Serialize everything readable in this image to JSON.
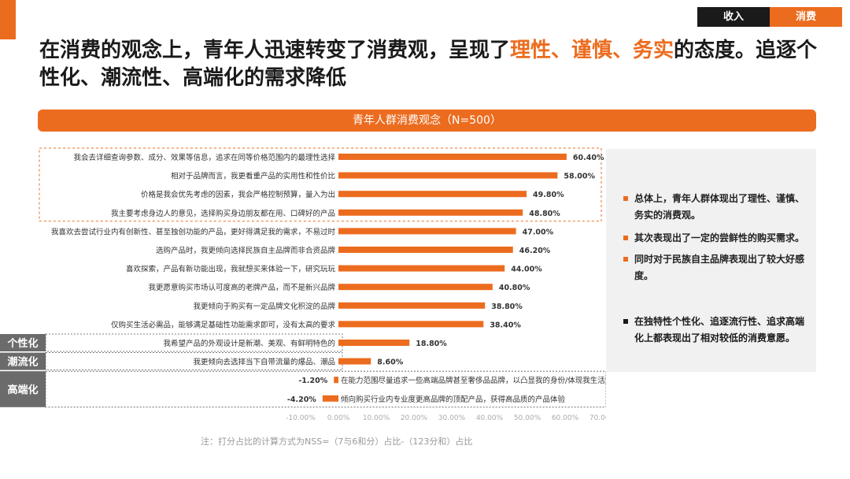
{
  "nav": {
    "tab_income": "收入",
    "tab_consumption": "消费"
  },
  "headline": {
    "part1": "在消费的观念上，青年人迅速转变了消费观，呈现了",
    "highlight": "理性、谨慎、务实",
    "part2": "的态度。追逐个性化、潮流性、高端化的需求降低"
  },
  "banner_title": "青年人群消费观念（N=500）",
  "colors": {
    "accent": "#ec6c1f",
    "dark": "#1a1a1a",
    "tag_gray": "#6b6b6b",
    "panel": "#f1f1f1"
  },
  "chart_data": {
    "type": "bar",
    "orientation": "horizontal",
    "categories": [
      "我会去详细查询参数、成分、效果等信息，追求在同等价格范围内的最理性选择",
      "相对于品牌而言，我更看重产品的实用性和性价比",
      "价格是我会优先考虑的因素，我会严格控制预算，量入为出",
      "我主要考虑身边人的意见，选择购买身边朋友都在用、口碑好的产品",
      "我喜欢去尝试行业内有创新性、甚至独创功能的产品，更好得满足我的需求，不易过时",
      "选购产品时，我更倾向选择民族自主品牌而非合资品牌",
      "喜欢探索，产品有新功能出现，我就想买来体验一下，研究玩玩",
      "我更愿意购买市场认可度高的老牌产品，而不是新兴品牌",
      "我更倾向于购买有一定品牌文化积淀的品牌",
      "仅购买生活必需品，能够满足基础性功能需求即可，没有太高的要求",
      "我希望产品的外观设计是新潮、美观、有鲜明特色的",
      "我更倾向去选择当下自带流量的爆品、潮品",
      "在能力范围尽量追求一些高端品牌甚至奢侈品品牌，以凸显我的身份/体现我生活追求",
      "倾向购买行业内专业度更高品牌的顶配产品，获得高品质的产品体验"
    ],
    "values": [
      60.4,
      58.0,
      49.8,
      48.8,
      47.0,
      46.2,
      44.0,
      40.8,
      38.8,
      38.4,
      18.8,
      8.6,
      -1.2,
      -4.2
    ],
    "value_labels": [
      "60.40%",
      "58.00%",
      "49.80%",
      "48.80%",
      "47.00%",
      "46.20%",
      "44.00%",
      "40.80%",
      "38.80%",
      "38.40%",
      "18.80%",
      "8.60%",
      "-1.20%",
      "-4.20%"
    ],
    "xlim": [
      -10,
      70
    ],
    "xticks": [
      -10,
      0,
      10,
      20,
      30,
      40,
      50,
      60,
      70
    ],
    "xtick_labels": [
      "-10.00%",
      "0.00%",
      "10.00%",
      "20.00%",
      "30.00%",
      "40.00%",
      "50.00%",
      "60.00%",
      "70.00%"
    ],
    "group_tags": [
      {
        "label": "个性化",
        "rows": [
          10
        ]
      },
      {
        "label": "潮流化",
        "rows": [
          11
        ]
      },
      {
        "label": "高端化",
        "rows": [
          12,
          13
        ]
      }
    ],
    "highlight_rows": [
      0,
      3
    ]
  },
  "side_panel": {
    "bullets": [
      {
        "text": "总体上，青年人群体现出了理性、谨慎、务实的消费观。",
        "style": "orange"
      },
      {
        "text": "其次表现出了一定的尝鲜性的购买需求。",
        "style": "orange"
      },
      {
        "text": "同时对于民族自主品牌表现出了较大好感度。",
        "style": "orange"
      },
      {
        "text": "在独特性个性化、追逐流行性、追求高端化上都表现出了相对较低的消费意愿。",
        "style": "dark"
      }
    ]
  },
  "note": "注：打分占比的计算方式为NSS=（7与6和分）占比-（123分和）占比"
}
